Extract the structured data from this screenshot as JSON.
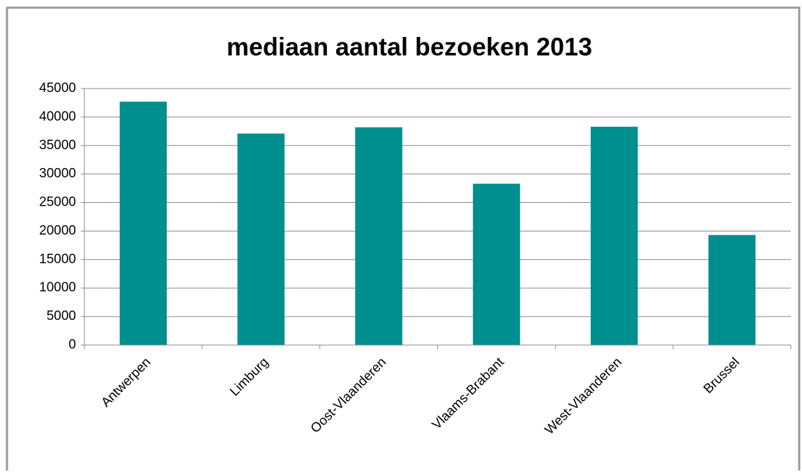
{
  "chart_data": {
    "type": "bar",
    "title": "mediaan aantal bezoeken 2013",
    "categories": [
      "Antwerpen",
      "Limburg",
      "Oost-Vlaanderen",
      "Vlaams-Brabant",
      "West-Vlaanderen",
      "Brussel"
    ],
    "values": [
      42700,
      37100,
      38200,
      28300,
      38300,
      19300
    ],
    "color": "#008f8f",
    "ylim": [
      0,
      45000
    ],
    "yticks": [
      0,
      5000,
      10000,
      15000,
      20000,
      25000,
      30000,
      35000,
      40000,
      45000
    ],
    "grid": true
  }
}
